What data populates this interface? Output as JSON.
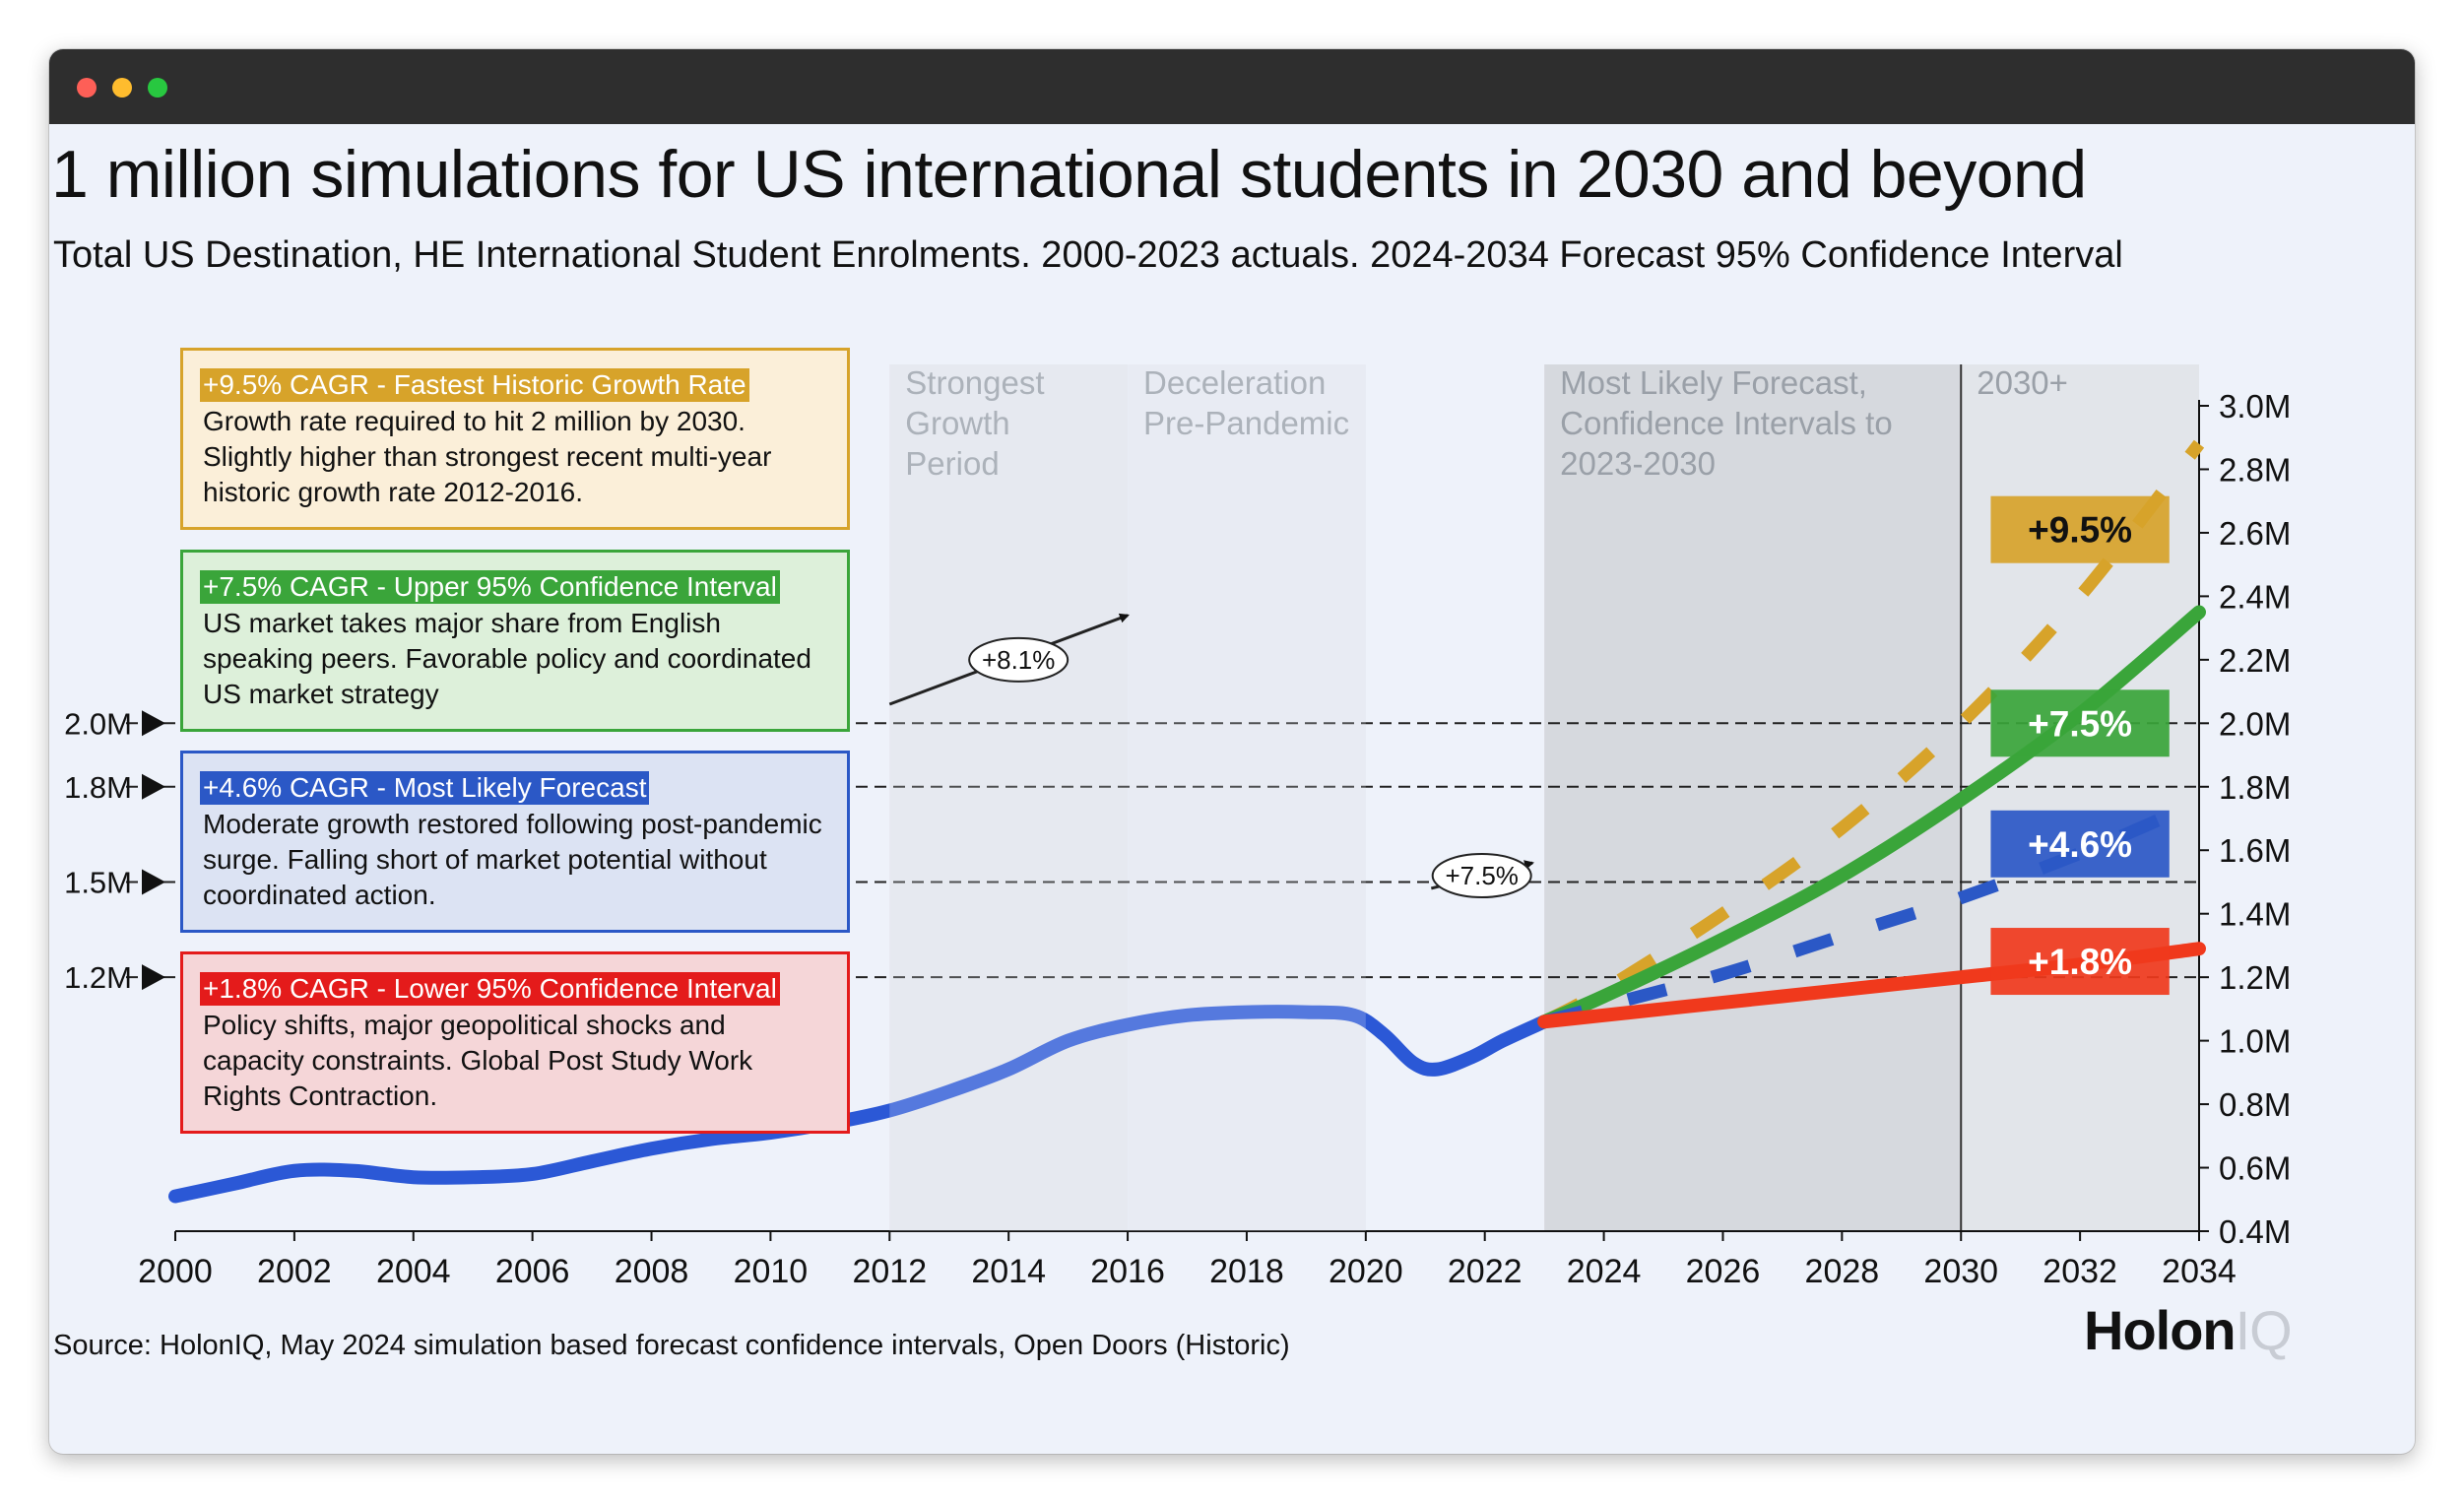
{
  "title": "1 million simulations for US international students in 2030 and beyond",
  "subtitle": "Total US Destination, HE International Student Enrolments. 2000-2023 actuals. 2024-2034 Forecast 95% Confidence Interval",
  "source": "Source: HolonIQ, May 2024 simulation based forecast confidence intervals, Open Doors (Historic)",
  "logo": {
    "bold": "Holon",
    "light": "IQ"
  },
  "boxes": [
    {
      "header": "+9.5% CAGR - Fastest Historic Growth Rate",
      "body": "Growth rate required to hit 2 million by 2030. Slightly higher than strongest recent multi-year historic growth rate 2012-2016."
    },
    {
      "header": "+7.5% CAGR - Upper 95% Confidence Interval",
      "body": "US market takes major share from English speaking peers. Favorable policy and coordinated US market strategy"
    },
    {
      "header": "+4.6% CAGR - Most Likely Forecast",
      "body": "Moderate growth restored following post-pandemic surge. Falling short of market potential without coordinated action."
    },
    {
      "header": "+1.8% CAGR - Lower 95% Confidence Interval",
      "body": "Policy shifts, major geopolitical shocks and capacity constraints. Global Post Study Work Rights Contraction."
    }
  ],
  "colors": {
    "actual": "#2b58d6",
    "rate_9_5": "#d7a32a",
    "rate_7_5": "#3aa53a",
    "rate_4_6": "#2b58c6",
    "rate_1_8": "#f0391c",
    "text": "#111111",
    "period_text": "#9aa0a8"
  },
  "chart_data": {
    "type": "line",
    "title": "1 million simulations for US international students in 2030 and beyond",
    "xlabel": "",
    "ylabel": "",
    "xlim": [
      2000,
      2034
    ],
    "ylim": [
      0.4,
      3.0
    ],
    "x_ticks": [
      "2000",
      "2002",
      "2004",
      "2006",
      "2008",
      "2010",
      "2012",
      "2014",
      "2016",
      "2018",
      "2020",
      "2022",
      "2024",
      "2026",
      "2028",
      "2030",
      "2032",
      "2034"
    ],
    "y_ticks": [
      "3.0M",
      "2.8M",
      "2.6M",
      "2.4M",
      "2.2M",
      "2.0M",
      "1.8M",
      "1.6M",
      "1.4M",
      "1.2M",
      "1.0M",
      "0.8M",
      "0.6M",
      "0.4M"
    ],
    "series": [
      {
        "name": "Actuals",
        "style": "solid",
        "x": [
          2000,
          2001,
          2002,
          2003,
          2004,
          2005,
          2006,
          2007,
          2008,
          2009,
          2010,
          2011,
          2012,
          2013,
          2014,
          2015,
          2016,
          2017,
          2018,
          2019,
          2019.8,
          2020.3,
          2020.8,
          2021.2,
          2021.8,
          2022.3,
          2023
        ],
        "y": [
          0.51,
          0.55,
          0.59,
          0.59,
          0.57,
          0.57,
          0.58,
          0.62,
          0.66,
          0.69,
          0.71,
          0.74,
          0.78,
          0.84,
          0.91,
          1.0,
          1.05,
          1.08,
          1.09,
          1.09,
          1.08,
          1.02,
          0.93,
          0.91,
          0.95,
          1.0,
          1.06
        ]
      },
      {
        "name": "+9.5% CAGR",
        "style": "dashed",
        "x": [
          2023,
          2024,
          2026,
          2028,
          2030,
          2032,
          2034
        ],
        "y": [
          1.06,
          1.16,
          1.4,
          1.67,
          2.0,
          2.4,
          2.88
        ]
      },
      {
        "name": "+7.5% CAGR",
        "style": "solid",
        "x": [
          2023,
          2024,
          2026,
          2028,
          2030,
          2032,
          2034
        ],
        "y": [
          1.06,
          1.14,
          1.32,
          1.52,
          1.76,
          2.03,
          2.35
        ]
      },
      {
        "name": "+4.6% CAGR",
        "style": "dashed",
        "x": [
          2023,
          2024,
          2026,
          2028,
          2030,
          2032,
          2033.5
        ],
        "y": [
          1.06,
          1.11,
          1.21,
          1.33,
          1.45,
          1.59,
          1.71
        ]
      },
      {
        "name": "+1.8% CAGR",
        "style": "solid",
        "x": [
          2023,
          2024,
          2026,
          2028,
          2030,
          2032,
          2034
        ],
        "y": [
          1.06,
          1.08,
          1.12,
          1.16,
          1.2,
          1.24,
          1.29
        ]
      }
    ],
    "periods": [
      {
        "label": "Strongest Growth Period",
        "from": 2012,
        "to": 2016
      },
      {
        "label": "Deceleration Pre-Pandemic",
        "from": 2016,
        "to": 2020
      },
      {
        "label": "Most Likely Forecast, Confidence Intervals to 2023-2030",
        "from": 2023,
        "to": 2030
      },
      {
        "label": "2030+",
        "from": 2030,
        "to": 2034
      }
    ],
    "reference_lines": [
      {
        "label": "2.0M",
        "value": 2.0
      },
      {
        "label": "1.8M",
        "value": 1.8
      },
      {
        "label": "1.5M",
        "value": 1.5
      },
      {
        "label": "1.2M",
        "value": 1.2
      }
    ],
    "end_labels": [
      {
        "label": "+9.5%",
        "series": "+9.5% CAGR",
        "value": 2.61
      },
      {
        "label": "+7.5%",
        "series": "+7.5% CAGR",
        "value": 2.0
      },
      {
        "label": "+4.6%",
        "series": "+4.6% CAGR",
        "value": 1.62
      },
      {
        "label": "+1.8%",
        "series": "+1.8% CAGR",
        "value": 1.25
      }
    ],
    "annotations": [
      {
        "text": "+8.1%",
        "x_from": 2012,
        "x_to": 2016,
        "y_from": 2.06,
        "y_to": 2.34
      },
      {
        "text": "+7.5%",
        "x_from": 2021.1,
        "x_to": 2022.8,
        "y_from": 1.48,
        "y_to": 1.56
      }
    ]
  }
}
